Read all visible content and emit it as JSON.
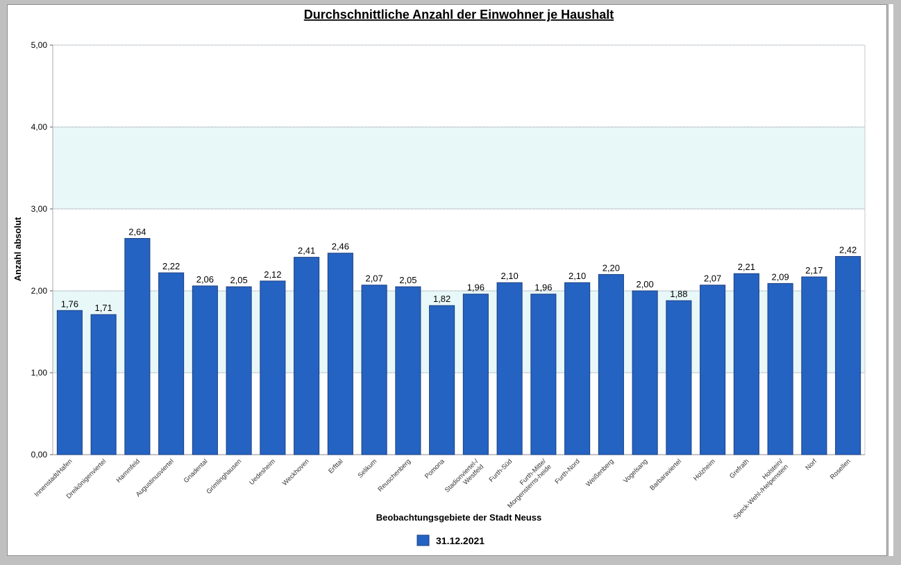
{
  "chart_data": {
    "type": "bar",
    "title": "Durchschnittliche Anzahl der Einwohner je Haushalt",
    "xlabel": "Beobachtungsgebiete der Stadt Neuss",
    "ylabel": "Anzahl absolut",
    "ylim": [
      0,
      5
    ],
    "yticks": [
      "0,00",
      "1,00",
      "2,00",
      "3,00",
      "4,00",
      "5,00"
    ],
    "grid": true,
    "legend_position": "bottom",
    "bar_color": "#2563c2",
    "bar_border_color": "#1b3f80",
    "band_color": "#e8f7f8",
    "bands": [
      [
        1,
        2
      ],
      [
        3,
        4
      ]
    ],
    "categories": [
      "Innenstadt/Hafen",
      "Dreikönigenviertel",
      "Hammfeld",
      "Augustinusviertel",
      "Gnadental",
      "Grimlinghausen",
      "Uedesheim",
      "Weckhoven",
      "Erfttal",
      "Selikum",
      "Reuschenberg",
      "Pomona",
      "Stadionviertel-/Westfeld",
      "Furth-Süd",
      "Furth-Mitte/Morgensterns-heide",
      "Furth-Nord",
      "Weißenberg",
      "Vogelsang",
      "Barbaraviertel",
      "Holzheim",
      "Grefrath",
      "Holstein/Speck-Wehl-/Helpenstein",
      "Norf",
      "Rosellen"
    ],
    "series": [
      {
        "name": "31.12.2021",
        "values": [
          1.76,
          1.71,
          2.64,
          2.22,
          2.06,
          2.05,
          2.12,
          2.41,
          2.46,
          2.07,
          2.05,
          1.82,
          1.96,
          2.1,
          1.96,
          2.1,
          2.2,
          2.0,
          1.88,
          2.07,
          2.21,
          2.09,
          2.17,
          2.42
        ],
        "labels": [
          "1,76",
          "1,71",
          "2,64",
          "2,22",
          "2,06",
          "2,05",
          "2,12",
          "2,41",
          "2,46",
          "2,07",
          "2,05",
          "1,82",
          "1,96",
          "2,10",
          "1,96",
          "2,10",
          "2,20",
          "2,00",
          "1,88",
          "2,07",
          "2,21",
          "2,09",
          "2,17",
          "2,42"
        ]
      }
    ]
  }
}
